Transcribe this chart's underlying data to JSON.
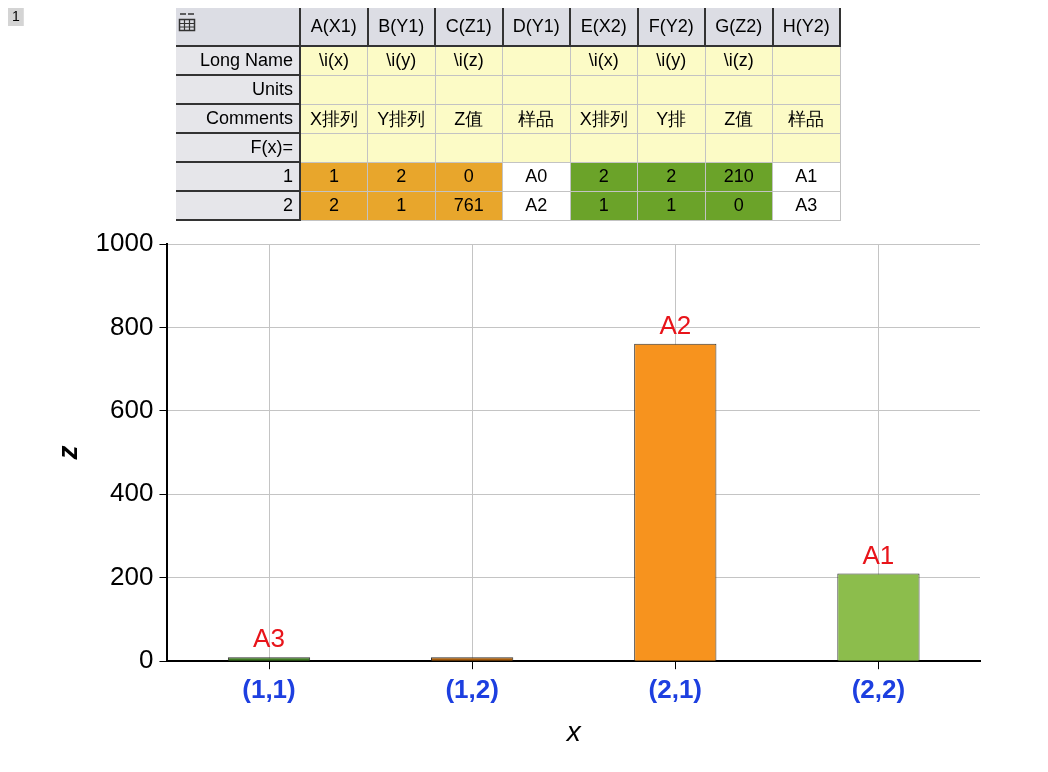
{
  "chart_data": [
    {
      "type": "bar",
      "categories": [
        "(1,1)",
        "(1,2)",
        "(2,1)",
        "(2,2)"
      ],
      "values": [
        0,
        0,
        761,
        210
      ],
      "colors": [
        "#3f7a24",
        "#a65c0c",
        "#f7931e",
        "#8cbd4c"
      ],
      "value_labels": [
        "A3",
        null,
        "A2",
        "A1"
      ],
      "xlabel": "x",
      "ylabel": "z",
      "ylim": [
        0,
        1000
      ],
      "yticks": [
        0,
        200,
        400,
        600,
        800,
        1000
      ],
      "grid": true,
      "annotations": [
        "1"
      ]
    },
    {
      "type": "other",
      "categories": [
        "A(X1)",
        "B(Y1)",
        "C(Z1)",
        "D(Y1)",
        "E(X2)",
        "F(Y2)",
        "G(Z2)",
        "H(Y2)"
      ],
      "y_categories": [
        "Long Name",
        "Units",
        "Comments",
        "F(x)=",
        "1",
        "2"
      ],
      "cell_labels": [
        [
          "\\i(x)",
          "\\i(y)",
          "\\i(z)",
          null,
          "\\i(x)",
          "\\i(y)",
          "\\i(z)",
          null
        ],
        [
          null,
          null,
          null,
          null,
          null,
          null,
          null,
          null
        ],
        [
          "X排列",
          "Y排列",
          "Z值",
          "样品",
          "X排列",
          "Y排",
          "Z值",
          "样品"
        ],
        [
          null,
          null,
          null,
          null,
          null,
          null,
          null,
          null
        ],
        [
          "1",
          "2",
          "0",
          "A0",
          "2",
          "2",
          "210",
          "A1"
        ],
        [
          "2",
          "1",
          "761",
          "A2",
          "1",
          "1",
          "0",
          "A3"
        ]
      ]
    }
  ]
}
